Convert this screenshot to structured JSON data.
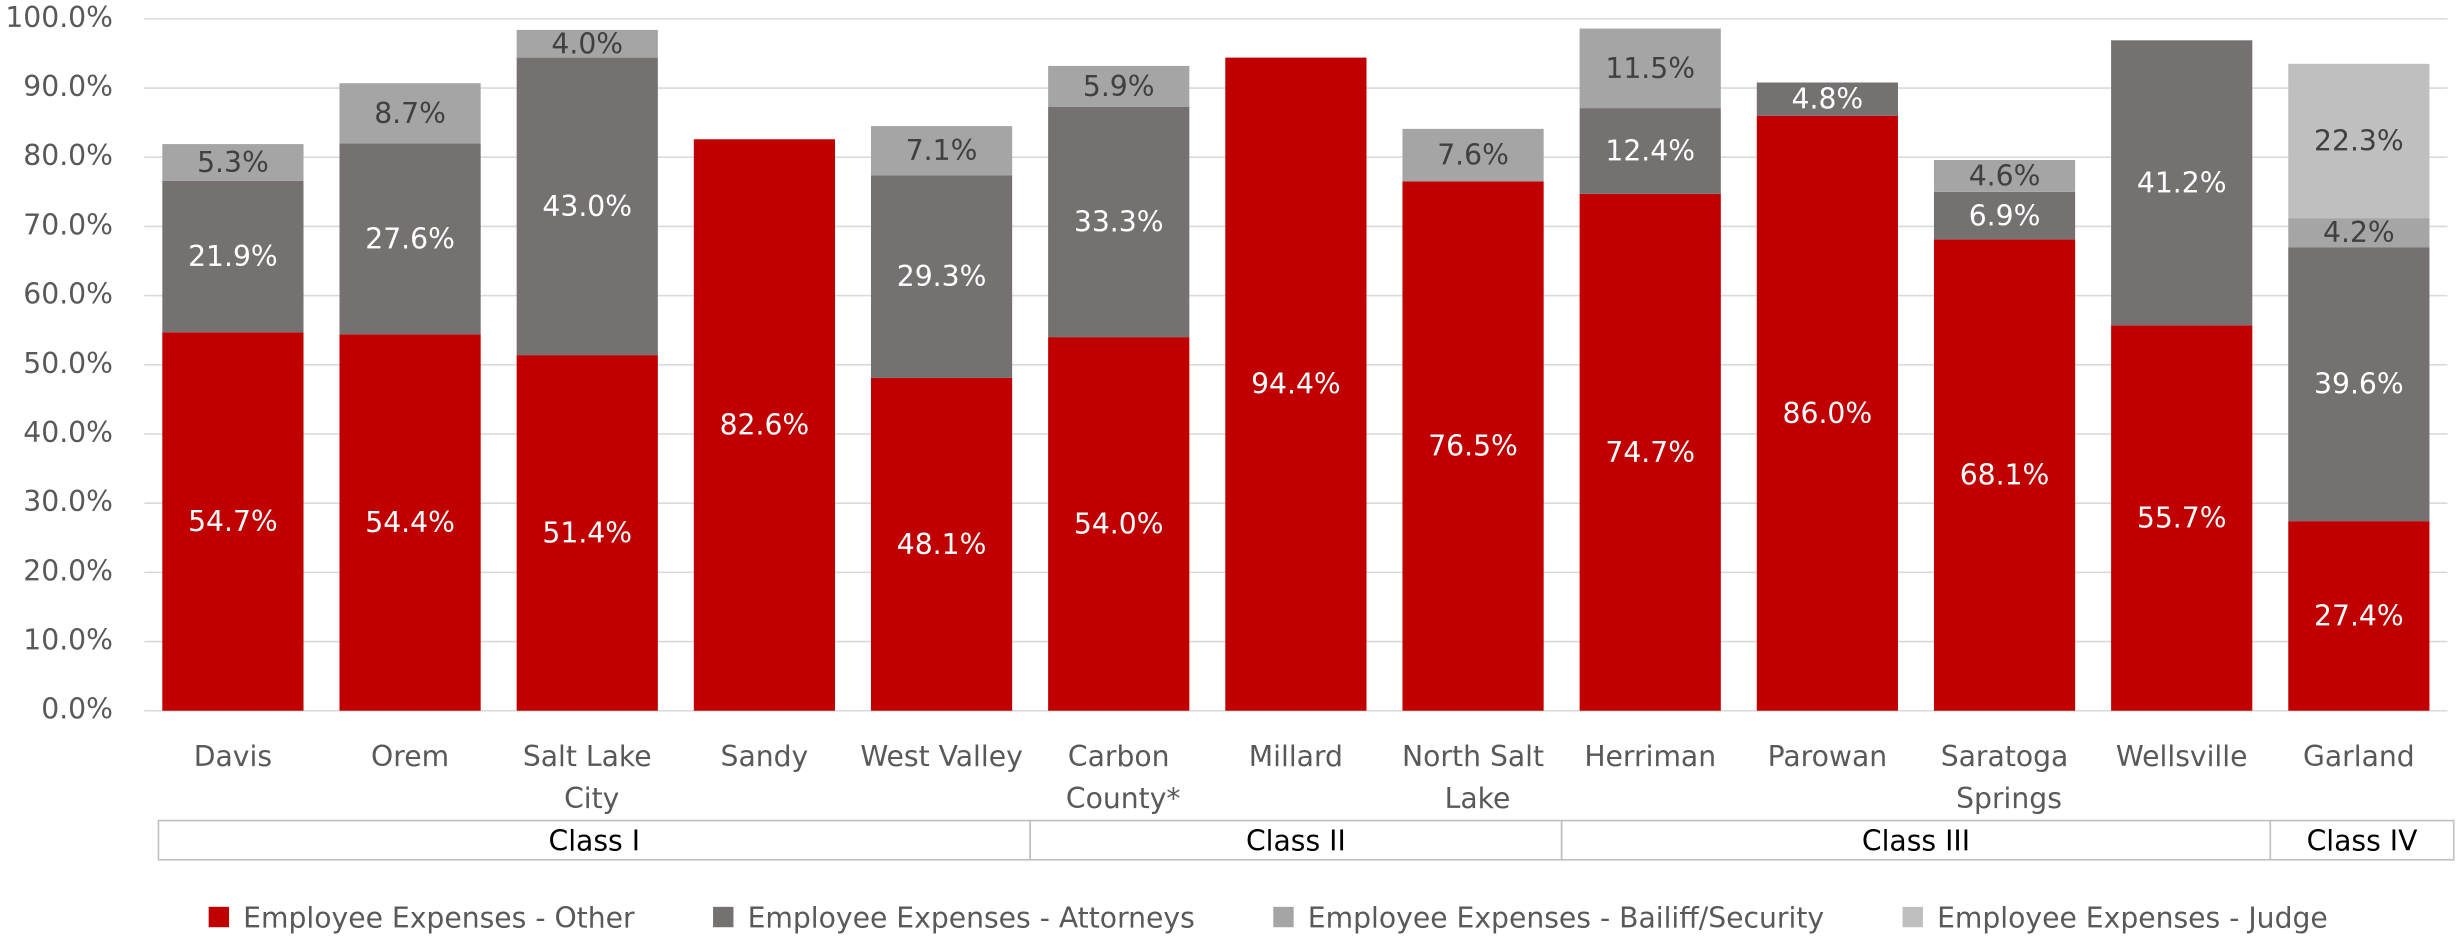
{
  "chart_data": {
    "type": "stacked_bar",
    "categories": [
      "Davis",
      "Orem",
      "Salt Lake City",
      "Sandy",
      "West Valley",
      "Carbon County*",
      "Millard",
      "North Salt Lake",
      "Herriman",
      "Parowan",
      "Saratoga Springs",
      "Wellsville",
      "Garland"
    ],
    "groups": [
      {
        "label": "Class I",
        "count": 5
      },
      {
        "label": "Class II",
        "count": 3
      },
      {
        "label": "Class III",
        "count": 4
      },
      {
        "label": "Class IV",
        "count": 1
      }
    ],
    "series": [
      {
        "name": "Employee Expenses - Other",
        "color": "#c00000",
        "values": [
          54.7,
          54.4,
          51.4,
          82.6,
          48.1,
          54.0,
          94.4,
          76.5,
          74.7,
          86.0,
          68.1,
          55.7,
          27.4
        ],
        "value_labels": [
          "54.7%",
          "54.4%",
          "51.4%",
          "82.6%",
          "48.1%",
          "54.0%",
          "94.4%",
          "76.5%",
          "74.7%",
          "86.0%",
          "68.1%",
          "55.7%",
          "27.4%"
        ]
      },
      {
        "name": "Employee Expenses - Attorneys",
        "color": "#767171",
        "values": [
          21.9,
          27.6,
          43.0,
          null,
          29.3,
          33.3,
          null,
          null,
          12.4,
          4.8,
          6.9,
          41.2,
          39.6
        ],
        "value_labels": [
          "21.9%",
          "27.6%",
          "43.0%",
          null,
          "29.3%",
          "33.3%",
          null,
          null,
          "12.4%",
          "4.8%",
          "6.9%",
          "41.2%",
          "39.6%"
        ]
      },
      {
        "name": "Employee Expenses - Bailiff/Security",
        "color": "#a5a5a5",
        "values": [
          5.3,
          8.7,
          4.0,
          null,
          7.1,
          5.9,
          null,
          7.6,
          11.5,
          null,
          4.6,
          null,
          4.2
        ],
        "value_labels": [
          "5.3%",
          "8.7%",
          "4.0%",
          null,
          "7.1%",
          "5.9%",
          null,
          "7.6%",
          "11.5%",
          null,
          "4.6%",
          null,
          "4.2%"
        ]
      },
      {
        "name": "Employee Expenses - Judge",
        "color": "#bfbfbf",
        "values": [
          null,
          null,
          null,
          null,
          null,
          null,
          null,
          null,
          null,
          null,
          null,
          null,
          22.3
        ],
        "value_labels": [
          null,
          null,
          null,
          null,
          null,
          null,
          null,
          null,
          null,
          null,
          null,
          null,
          "22.3%"
        ]
      }
    ],
    "ylim": [
      0,
      100
    ],
    "yticks": [
      {
        "value": 0,
        "label": "0.0%"
      },
      {
        "value": 10,
        "label": "10.0%"
      },
      {
        "value": 20,
        "label": "20.0%"
      },
      {
        "value": 30,
        "label": "30.0%"
      },
      {
        "value": 40,
        "label": "40.0%"
      },
      {
        "value": 50,
        "label": "50.0%"
      },
      {
        "value": 60,
        "label": "60.0%"
      },
      {
        "value": 70,
        "label": "70.0%"
      },
      {
        "value": 80,
        "label": "80.0%"
      },
      {
        "value": 90,
        "label": "90.0%"
      },
      {
        "value": 100,
        "label": "100.0%"
      }
    ],
    "grid": true,
    "legend": "bottom"
  }
}
